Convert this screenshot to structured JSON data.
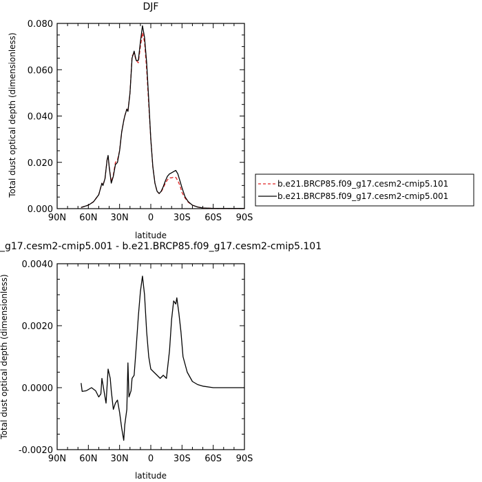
{
  "chart_data": [
    {
      "type": "line",
      "title": "DJF",
      "xlabel": "latitude",
      "ylabel": "Total dust optical depth (dimensionless)",
      "xlim": [
        90,
        -90
      ],
      "ylim": [
        0,
        0.08
      ],
      "xticks": [
        90,
        60,
        30,
        0,
        -30,
        -60,
        -90
      ],
      "xtick_labels": [
        "90N",
        "60N",
        "30N",
        "0",
        "30S",
        "60S",
        "90S"
      ],
      "yticks": [
        0,
        0.02,
        0.04,
        0.06,
        0.08
      ],
      "ytick_labels": [
        "0.000",
        "0.020",
        "0.040",
        "0.060",
        "0.080"
      ],
      "legend_position": "right",
      "series": [
        {
          "name": "b.e21.BRCP85.f09_g17.cesm2-cmip5.101",
          "color": "#e02020",
          "dash": "dashed",
          "x": [
            67,
            60,
            55,
            50,
            47,
            46,
            44,
            42,
            41,
            40,
            38,
            36,
            34,
            32,
            30,
            28,
            26,
            25,
            23,
            22,
            20,
            18,
            16,
            14,
            12,
            10,
            8,
            6,
            4,
            2,
            0,
            -2,
            -4,
            -6,
            -8,
            -10,
            -12,
            -14,
            -16,
            -18,
            -20,
            -22,
            -24,
            -26,
            -28,
            -30,
            -33,
            -36,
            -40,
            -45,
            -50,
            -60,
            -70,
            -80,
            -90
          ],
          "y": [
            0.0005,
            0.0015,
            0.003,
            0.006,
            0.011,
            0.01,
            0.013,
            0.021,
            0.0225,
            0.018,
            0.0115,
            0.0145,
            0.02,
            0.021,
            0.025,
            0.033,
            0.038,
            0.04,
            0.043,
            0.042,
            0.05,
            0.066,
            0.067,
            0.064,
            0.063,
            0.07,
            0.076,
            0.072,
            0.06,
            0.045,
            0.03,
            0.018,
            0.011,
            0.0075,
            0.0065,
            0.0072,
            0.009,
            0.011,
            0.0125,
            0.0133,
            0.0133,
            0.0136,
            0.0135,
            0.012,
            0.01,
            0.007,
            0.0045,
            0.0028,
            0.0015,
            0.0007,
            0.0003,
            0.0001,
            0.0001,
            0.0001,
            0.0001
          ]
        },
        {
          "name": "b.e21.BRCP85.f09_g17.cesm2-cmip5.001",
          "color": "#000000",
          "dash": "solid",
          "x": [
            67,
            60,
            55,
            50,
            47,
            46,
            44,
            42,
            41,
            40,
            38,
            36,
            34,
            32,
            30,
            28,
            26,
            25,
            23,
            22,
            20,
            18,
            16,
            14,
            12,
            10,
            8,
            6,
            4,
            2,
            0,
            -2,
            -4,
            -6,
            -8,
            -10,
            -12,
            -14,
            -16,
            -18,
            -20,
            -22,
            -24,
            -26,
            -28,
            -30,
            -33,
            -36,
            -40,
            -45,
            -50,
            -60,
            -70,
            -80,
            -90
          ],
          "y": [
            0.0005,
            0.0015,
            0.003,
            0.006,
            0.011,
            0.01,
            0.013,
            0.021,
            0.023,
            0.018,
            0.011,
            0.014,
            0.019,
            0.02,
            0.025,
            0.033,
            0.038,
            0.04,
            0.043,
            0.042,
            0.05,
            0.065,
            0.068,
            0.064,
            0.064,
            0.072,
            0.079,
            0.074,
            0.063,
            0.047,
            0.03,
            0.018,
            0.011,
            0.0075,
            0.0065,
            0.0075,
            0.0095,
            0.012,
            0.014,
            0.015,
            0.0155,
            0.016,
            0.0165,
            0.015,
            0.012,
            0.009,
            0.005,
            0.003,
            0.0015,
            0.0007,
            0.0003,
            0.0001,
            0.0001,
            0.0001,
            0.0001
          ]
        }
      ]
    },
    {
      "type": "line",
      "title": "_g17.cesm2-cmip5.001 - b.e21.BRCP85.f09_g17.cesm2-cmip5.101",
      "xlabel": "latitude",
      "ylabel": "Total dust optical depth (dimensionless)",
      "xlim": [
        90,
        -90
      ],
      "ylim": [
        -0.002,
        0.004
      ],
      "xticks": [
        90,
        60,
        30,
        0,
        -30,
        -60,
        -90
      ],
      "xtick_labels": [
        "90N",
        "60N",
        "30N",
        "0",
        "30S",
        "60S",
        "90S"
      ],
      "yticks": [
        -0.002,
        0,
        0.002,
        0.004
      ],
      "ytick_labels": [
        "-0.0020",
        "0.0000",
        "0.0020",
        "0.0040"
      ],
      "series": [
        {
          "color": "#000000",
          "dash": "solid",
          "x": [
            67,
            66,
            62,
            57,
            53,
            50,
            48,
            47,
            45,
            43,
            41,
            39,
            38,
            36,
            34,
            32,
            30,
            28,
            26,
            25,
            23,
            22,
            21,
            19,
            18,
            16,
            14,
            12,
            10,
            8,
            6,
            4,
            2,
            0,
            -3,
            -6,
            -9,
            -12,
            -15,
            -18,
            -20,
            -22,
            -24,
            -25,
            -27,
            -29,
            -31,
            -35,
            -40,
            -45,
            -50,
            -60,
            -70,
            -80,
            -90
          ],
          "y": [
            0.00015,
            -0.00012,
            -0.0001,
            -0.0,
            -0.0001,
            -0.0003,
            -0.0002,
            0.0003,
            -0.0001,
            -0.0005,
            0.0006,
            0.0003,
            -0.0001,
            -0.0007,
            -0.0005,
            -0.0004,
            -0.0008,
            -0.0013,
            -0.0017,
            -0.0012,
            -0.0007,
            0.0008,
            -0.0003,
            -0.0001,
            0.0003,
            0.0004,
            0.0013,
            0.0023,
            0.0031,
            0.0036,
            0.003,
            0.0018,
            0.001,
            0.0006,
            0.0005,
            0.0004,
            0.0003,
            0.0004,
            0.0003,
            0.0012,
            0.0022,
            0.0028,
            0.0027,
            0.0029,
            0.0024,
            0.0018,
            0.001,
            0.0005,
            0.0002,
            0.0001,
            5e-05,
            0.0,
            0.0,
            0.0,
            0.0
          ]
        }
      ]
    }
  ]
}
